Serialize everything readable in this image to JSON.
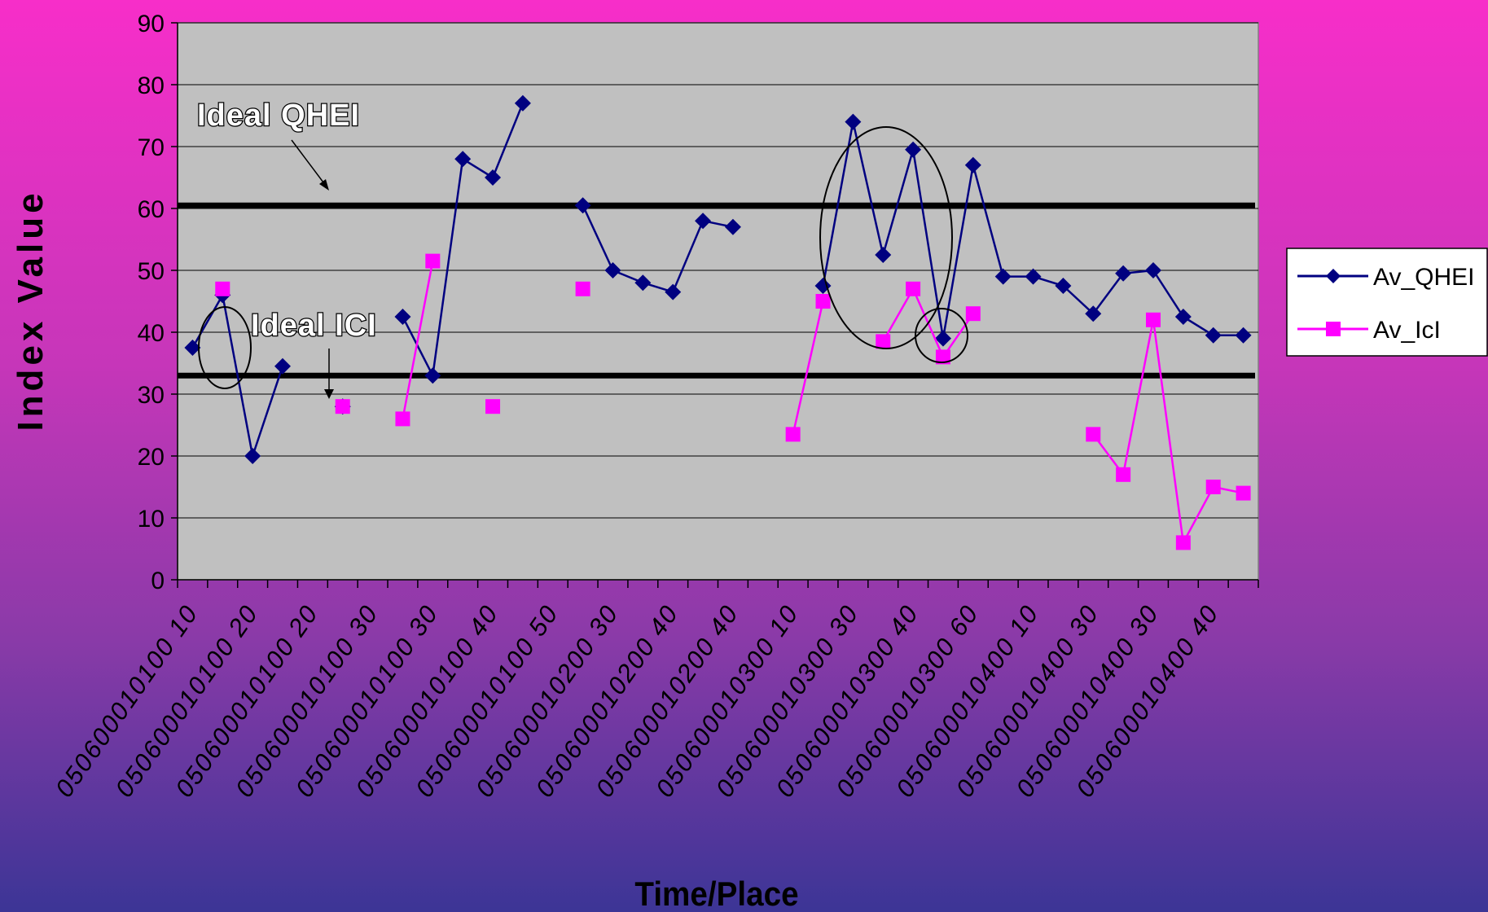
{
  "chart_data": {
    "type": "line",
    "title": "",
    "xlabel": "Time/Place",
    "ylabel": "Index Value",
    "ylim": [
      0,
      90
    ],
    "yticks": [
      "0",
      "10",
      "20",
      "30",
      "40",
      "50",
      "60",
      "70",
      "80",
      "90"
    ],
    "x_tick_labels": [
      "050600010100 10",
      "050600010100 20",
      "050600010100 20",
      "050600010100 30",
      "050600010100 30",
      "050600010100 40",
      "050600010100 50",
      "050600010200 30",
      "050600010200 40",
      "050600010200 40",
      "050600010300 10",
      "050600010300 30",
      "050600010300 40",
      "050600010300 60",
      "050600010400 10",
      "050600010400 30",
      "050600010400 30",
      "050600010400 40"
    ],
    "num_points": 36,
    "grid": true,
    "legend_position": "right",
    "series": [
      {
        "name": "Av_QHEI",
        "color": "#000080",
        "marker": "diamond",
        "values": [
          37.5,
          46,
          20,
          34.5,
          null,
          28,
          null,
          42.5,
          33,
          68,
          65,
          77,
          null,
          60.5,
          50,
          48,
          46.5,
          58,
          57,
          null,
          null,
          47.5,
          74,
          52.5,
          69.5,
          39,
          67,
          49,
          49,
          47.5,
          43,
          49.5,
          50,
          42.5,
          39.5,
          39.5
        ]
      },
      {
        "name": "Av_IcI",
        "color": "#ff00ff",
        "marker": "square",
        "values": [
          null,
          47,
          null,
          null,
          null,
          28,
          null,
          26,
          51.5,
          null,
          28,
          null,
          null,
          47,
          null,
          null,
          null,
          null,
          null,
          null,
          23.5,
          45,
          null,
          38.5,
          47,
          36,
          43,
          null,
          null,
          null,
          23.5,
          17,
          42,
          6,
          15,
          14
        ]
      }
    ],
    "reference_lines": [
      {
        "label": "Ideal QHEI",
        "y": 60.5
      },
      {
        "label": "Ideal ICI",
        "y": 33
      }
    ]
  }
}
